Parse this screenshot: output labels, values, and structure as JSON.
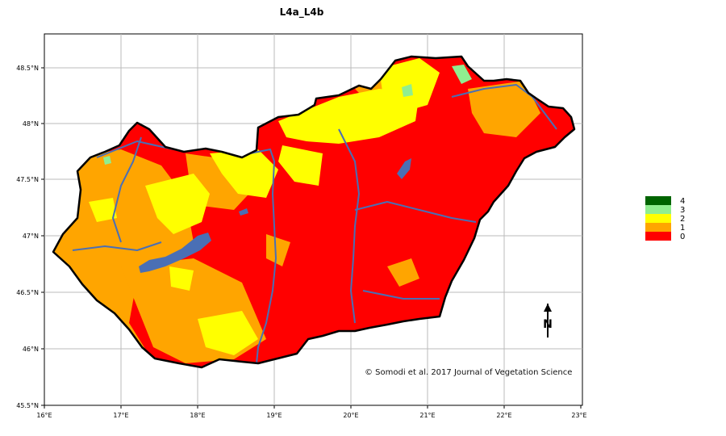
{
  "map": {
    "title": "L4a_L4b",
    "credit": "© Somodi et al. 2017 Journal of Vegetation Science",
    "x_ticks": [
      "16°E",
      "17°E",
      "18°E",
      "19°E",
      "20°E",
      "21°E",
      "22°E",
      "23°E"
    ],
    "y_ticks": [
      "48.5°N",
      "48°N",
      "47.5°N",
      "47°N",
      "46.5°N",
      "46°N",
      "45.5°N"
    ],
    "north_label": "N",
    "legend": [
      {
        "label": "4",
        "color": "#006400"
      },
      {
        "label": "3",
        "color": "#90ee90"
      },
      {
        "label": "2",
        "color": "#ffff00"
      },
      {
        "label": "1",
        "color": "#ffa500"
      },
      {
        "label": "0",
        "color": "#ff0000"
      }
    ],
    "colors": {
      "water": "#4a6fb5",
      "grid": "#bbbbbb",
      "border": "#000000"
    }
  }
}
